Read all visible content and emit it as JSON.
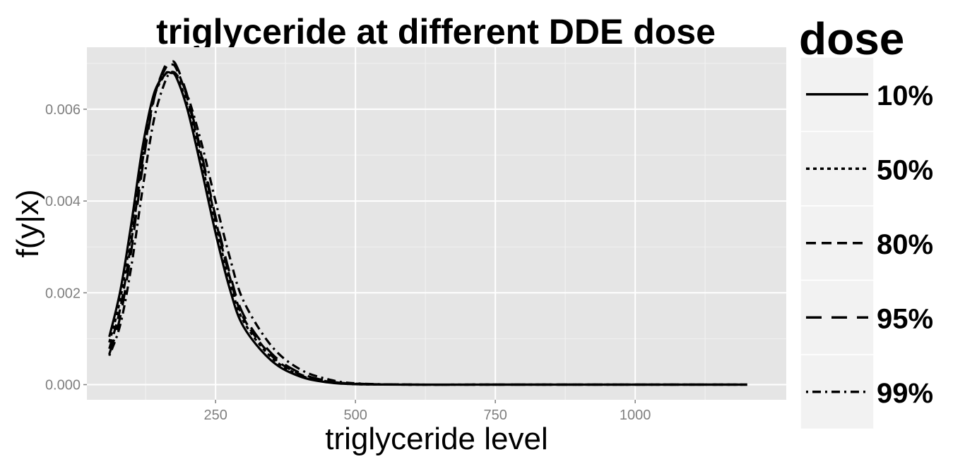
{
  "chart_data": {
    "type": "line",
    "title": "triglyceride at different DDE dose",
    "xlabel": "triglyceride level",
    "ylabel": "f(y|x)",
    "xlim": [
      20,
      1270
    ],
    "ylim": [
      -0.00033,
      0.00735
    ],
    "x_ticks": [
      250,
      500,
      750,
      1000
    ],
    "x_tick_labels": [
      "250",
      "500",
      "750",
      "1000"
    ],
    "y_ticks": [
      0,
      0.002,
      0.004,
      0.006
    ],
    "y_tick_labels": [
      "0.000",
      "0.002",
      "0.004",
      "0.006"
    ],
    "grid": true,
    "legend": {
      "title": "dose",
      "position": "right"
    },
    "x": [
      60,
      80,
      100,
      120,
      140,
      160,
      170,
      180,
      200,
      225,
      250,
      275,
      300,
      350,
      400,
      450,
      500,
      600,
      750,
      1000,
      1200
    ],
    "series": [
      {
        "name": "10%",
        "linestyle": "solid",
        "values": [
          0.00104,
          0.00206,
          0.00356,
          0.00521,
          0.00634,
          0.00676,
          0.00679,
          0.00669,
          0.00598,
          0.00468,
          0.0033,
          0.0021,
          0.00126,
          0.00052,
          0.00018,
          5e-05,
          1e-05,
          0,
          0,
          0,
          0
        ]
      },
      {
        "name": "50%",
        "linestyle": "dotted",
        "values": [
          0.00092,
          0.00188,
          0.00338,
          0.00505,
          0.00626,
          0.00676,
          0.00681,
          0.00673,
          0.00608,
          0.00484,
          0.00347,
          0.00226,
          0.00138,
          0.00059,
          0.00021,
          6e-05,
          1e-05,
          0,
          0,
          0,
          0
        ]
      },
      {
        "name": "80%",
        "linestyle": "dashed",
        "values": [
          0.00078,
          0.00168,
          0.00317,
          0.00492,
          0.00625,
          0.00688,
          0.00697,
          0.00688,
          0.00621,
          0.00497,
          0.00359,
          0.00236,
          0.00145,
          0.00063,
          0.00023,
          7e-05,
          2e-05,
          0,
          0,
          0,
          0
        ]
      },
      {
        "name": "95%",
        "linestyle": "longdash",
        "values": [
          0.00066,
          0.0015,
          0.00298,
          0.00478,
          0.00622,
          0.00695,
          0.00704,
          0.00695,
          0.00627,
          0.00502,
          0.00366,
          0.00244,
          0.00152,
          0.00068,
          0.00026,
          8e-05,
          2e-05,
          0,
          0,
          0,
          0
        ]
      },
      {
        "name": "99%",
        "linestyle": "dotdash",
        "values": [
          0.00063,
          0.00132,
          0.00262,
          0.0043,
          0.00578,
          0.00661,
          0.00677,
          0.00676,
          0.00629,
          0.00525,
          0.00399,
          0.00279,
          0.00182,
          0.00084,
          0.00034,
          0.00012,
          3e-05,
          0,
          0,
          0,
          0
        ]
      }
    ]
  }
}
